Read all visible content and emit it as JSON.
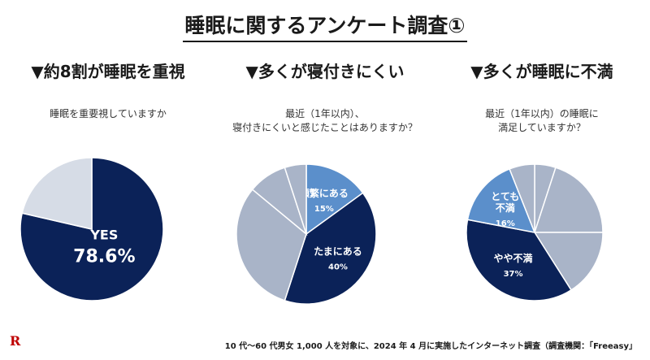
{
  "title": "睡眠に関するアンケート調査①",
  "logo": "R",
  "footnote": "10 代～60 代男女 1,000 人を対象に、2024 年 4 月に実施したインターネット調査（調査機関：「Freeasy」",
  "colors": {
    "navy": "#0b2258",
    "blue": "#5b8fcb",
    "gray": "#a9b4c8",
    "light": "#d6dce6"
  },
  "panels": [
    {
      "heading": "▼約8割が睡眠を重視",
      "question": "睡眠を重要視していますか"
    },
    {
      "heading": "▼多くが寝付きにくい",
      "question": "最近（1年以内）、\n寝付きにくいと感じたことはありますか？"
    },
    {
      "heading": "▼多くが睡眠に不満",
      "question": "最近（1年以内）の睡眠に\n満足していますか？"
    }
  ],
  "chart_data": [
    {
      "type": "pie",
      "title": "睡眠を重要視していますか",
      "slices": [
        {
          "label": "YES",
          "value": 78.6,
          "value_label": "78.6%",
          "color": "#0b2258"
        },
        {
          "label": "",
          "value": 21.4,
          "value_label": "",
          "color": "#d6dce6"
        }
      ]
    },
    {
      "type": "pie",
      "title": "最近（1年以内）、寝付きにくいと感じたことはありますか？",
      "slices": [
        {
          "label": "頻繁にある",
          "value": 15,
          "value_label": "15%",
          "color": "#5b8fcb"
        },
        {
          "label": "たまにある",
          "value": 40,
          "value_label": "40%",
          "color": "#0b2258"
        },
        {
          "label": "",
          "value": 31,
          "value_label": "",
          "color": "#a9b4c8"
        },
        {
          "label": "",
          "value": 9,
          "value_label": "",
          "color": "#a9b4c8"
        },
        {
          "label": "",
          "value": 5,
          "value_label": "",
          "color": "#a9b4c8"
        }
      ]
    },
    {
      "type": "pie",
      "title": "最近（1年以内）の睡眠に満足していますか？",
      "slices": [
        {
          "label": "",
          "value": 5,
          "value_label": "",
          "color": "#a9b4c8"
        },
        {
          "label": "",
          "value": 20,
          "value_label": "",
          "color": "#a9b4c8"
        },
        {
          "label": "",
          "value": 16,
          "value_label": "",
          "color": "#a9b4c8"
        },
        {
          "label": "やや不満",
          "value": 37,
          "value_label": "37%",
          "color": "#0b2258"
        },
        {
          "label": "とても\n不満",
          "value": 16,
          "value_label": "16%",
          "color": "#5b8fcb"
        },
        {
          "label": "",
          "value": 6,
          "value_label": "",
          "color": "#a9b4c8"
        }
      ]
    }
  ]
}
